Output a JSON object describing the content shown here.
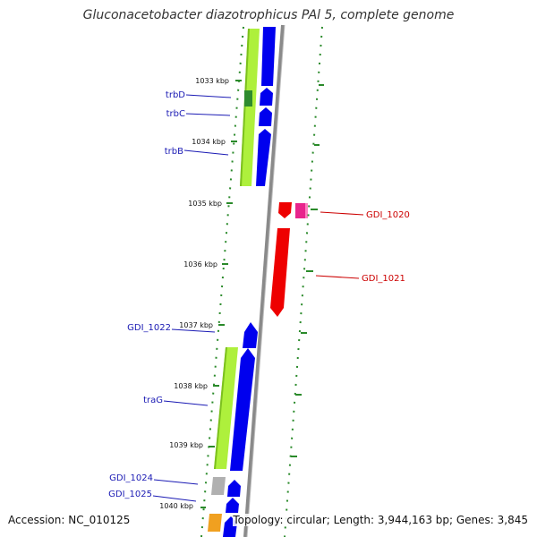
{
  "title": "Gluconacetobacter diazotrophicus PAl 5, complete genome",
  "footer": {
    "accession": "Accession: NC_010125",
    "topology": "Topology: circular; Length: 3,944,163 bp; Genes: 3,845"
  },
  "ticks": [
    "1033 kbp",
    "1034 kbp",
    "1035 kbp",
    "1036 kbp",
    "1037 kbp",
    "1038 kbp",
    "1039 kbp",
    "1040 kbp"
  ],
  "genes": [
    {
      "name": "trbD",
      "color": "#1a1ab4"
    },
    {
      "name": "trbC",
      "color": "#1a1ab4"
    },
    {
      "name": "trbB",
      "color": "#1a1ab4"
    },
    {
      "name": "GDI_1020",
      "color": "#cc0000"
    },
    {
      "name": "GDI_1021",
      "color": "#cc0000"
    },
    {
      "name": "GDI_1022",
      "color": "#1a1ab4"
    },
    {
      "name": "traG",
      "color": "#1a1ab4"
    },
    {
      "name": "GDI_1024",
      "color": "#1a1ab4"
    },
    {
      "name": "GDI_1025",
      "color": "#1a1ab4"
    }
  ],
  "colors": {
    "forward_cds": "#0000ee",
    "reverse_cds": "#ee0000",
    "reverse_cds_alt": "#e8248c",
    "cog_green": "#aef03c",
    "cog_darkgreen": "#2e8b2e",
    "cog_orange": "#f0a020",
    "cog_grey": "#b0b0b0",
    "backbone": "#888888",
    "tick": "#2a8a2a"
  }
}
